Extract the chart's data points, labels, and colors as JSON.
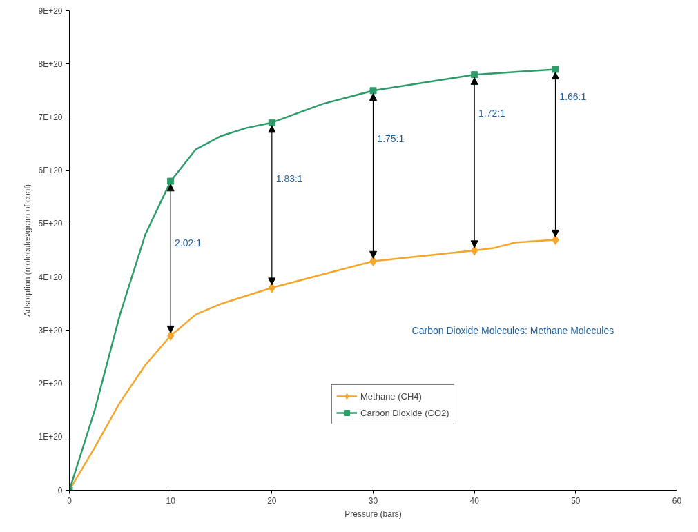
{
  "chart_data": {
    "type": "line",
    "xlabel": "Pressure (bars)",
    "ylabel": "Adsorption (molecules/gram of coal)",
    "series": [
      {
        "name": "Methane (CH4)",
        "color": "#f5a52a",
        "marker": "none",
        "x": [
          0,
          2.5,
          5,
          7.5,
          10,
          12.5,
          15,
          20,
          25,
          30,
          35,
          40,
          42,
          44,
          48
        ],
        "values": [
          0,
          8e+19,
          1.65e+20,
          2.35e+20,
          2.9e+20,
          3.3e+20,
          3.5e+20,
          3.8e+20,
          4.05e+20,
          4.3e+20,
          4.4e+20,
          4.5e+20,
          4.55e+20,
          4.65e+20,
          4.7e+20
        ]
      },
      {
        "name": "Carbon Dioxide (CO2)",
        "color": "#2e9c6a",
        "marker": "none",
        "x": [
          0,
          2.5,
          5,
          7.5,
          10,
          12.5,
          15,
          17.5,
          20,
          25,
          30,
          35,
          40,
          44,
          48
        ],
        "values": [
          0,
          1.5e+20,
          3.3e+20,
          4.8e+20,
          5.8e+20,
          6.4e+20,
          6.65e+20,
          6.8e+20,
          6.9e+20,
          7.25e+20,
          7.5e+20,
          7.65e+20,
          7.8e+20,
          7.85e+20,
          7.9e+20
        ]
      },
      {
        "type": "scatter",
        "color": "#f5a52a",
        "marker": "diamond",
        "x": [
          10,
          20,
          30,
          40,
          48
        ],
        "values": [
          2.9e+20,
          3.8e+20,
          4.3e+20,
          4.5e+20,
          4.7e+20
        ]
      },
      {
        "type": "scatter",
        "color": "#2e9c6a",
        "marker": "square",
        "x": [
          0,
          10,
          20,
          30,
          40,
          48
        ],
        "values": [
          0,
          5.8e+20,
          6.9e+20,
          7.5e+20,
          7.8e+20,
          7.9e+20
        ]
      }
    ],
    "xlim": [
      0,
      60
    ],
    "xticks": [
      0,
      10,
      20,
      30,
      40,
      50,
      60
    ],
    "ylim": [
      0,
      9e+20
    ],
    "yticks": [
      {
        "value": 0,
        "label": "0"
      },
      {
        "value": 1e+20,
        "label": "1E+20"
      },
      {
        "value": 2e+20,
        "label": "2E+20"
      },
      {
        "value": 3e+20,
        "label": "3E+20"
      },
      {
        "value": 4e+20,
        "label": "4E+20"
      },
      {
        "value": 5e+20,
        "label": "5E+20"
      },
      {
        "value": 6e+20,
        "label": "6E+20"
      },
      {
        "value": 7e+20,
        "label": "7E+20"
      },
      {
        "value": 8e+20,
        "label": "8E+20"
      },
      {
        "value": 9e+20,
        "label": "9E+20"
      }
    ],
    "annotations": [
      "2.02:1",
      "1.83:1",
      "1.75:1",
      "1.72:1",
      "1.66:1",
      "Carbon Dioxide Molecules: Methane Molecules"
    ],
    "grid": false,
    "legend": "bottom",
    "line_style": "solid"
  }
}
